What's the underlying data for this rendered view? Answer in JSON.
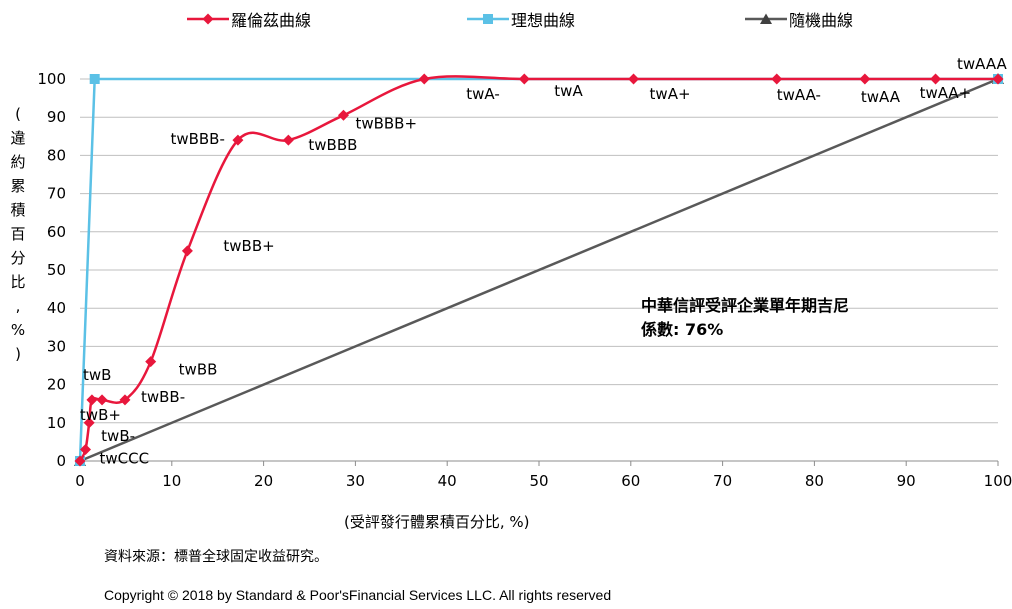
{
  "chart_data": {
    "type": "line",
    "title": "",
    "xlabel": "(受評發行體累積百分比, %)",
    "ylabel": "(違約累積百分比, %)",
    "xlim": [
      0,
      100
    ],
    "ylim": [
      0,
      100
    ],
    "x_ticks": [
      0,
      10,
      20,
      30,
      40,
      50,
      60,
      70,
      80,
      90,
      100
    ],
    "y_ticks": [
      0,
      10,
      20,
      30,
      40,
      50,
      60,
      70,
      80,
      90,
      100
    ],
    "grid": "horizontal",
    "legend_position": "top",
    "series": [
      {
        "name": "羅倫茲曲線",
        "color": "#e8173c",
        "marker": "diamond",
        "x": [
          0,
          0.6,
          1.0,
          1.3,
          2.4,
          4.9,
          7.7,
          11.7,
          17.2,
          22.7,
          28.7,
          37.5,
          48.4,
          60.3,
          75.9,
          85.5,
          93.2,
          100
        ],
        "y": [
          0,
          3,
          10,
          16,
          16,
          16,
          26,
          55,
          84,
          84,
          90.5,
          100,
          100,
          100,
          100,
          100,
          100,
          100
        ],
        "point_labels": [
          "",
          "twCCC",
          "twB-",
          "twB+",
          "twB",
          "twBB-",
          "twBB",
          "twBB+",
          "twBBB-",
          "twBBB",
          "twBBB+",
          "twA-",
          "twA",
          "twA+",
          "twAA-",
          "twAA",
          "twAA+",
          "twAAA"
        ]
      },
      {
        "name": "理想曲線",
        "color": "#5bc1e6",
        "marker": "square",
        "x": [
          0,
          1.6,
          100
        ],
        "y": [
          0,
          100,
          100
        ]
      },
      {
        "name": "隨機曲線",
        "color": "#595959",
        "marker": "triangle",
        "x": [
          0,
          100
        ],
        "y": [
          0,
          100
        ]
      }
    ],
    "annotation": [
      "中華信評受評企業單年期吉尼",
      "係數: 76%"
    ]
  },
  "source_text": "資料來源：標普全球固定收益研究。",
  "copyright_text": "Copyright © 2018  by Standard & Poor'sFinancial Services LLC. All rights reserved"
}
